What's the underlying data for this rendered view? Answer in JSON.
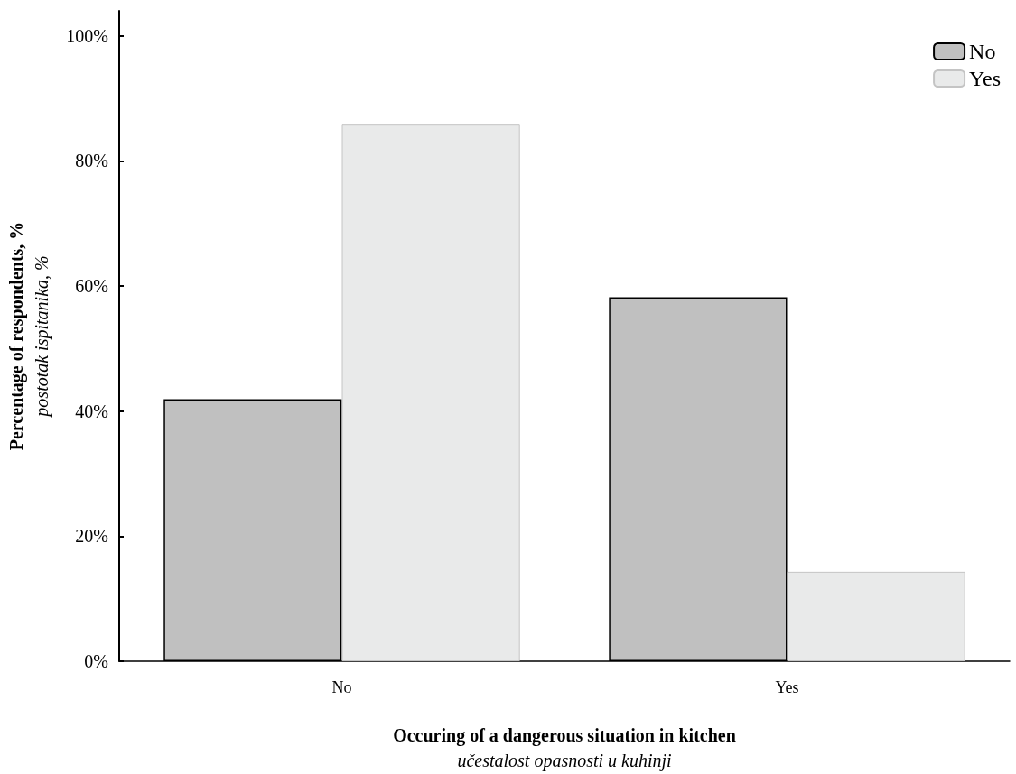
{
  "chart_data": {
    "type": "bar",
    "xlabel": "Occuring of a dangerous situation in kitchen\nučestalost opasnosti u kuhinji",
    "ylabel": "Percentage of respondents, %\npostotak ispitanika, %",
    "categories": [
      "No",
      "Yes"
    ],
    "series": [
      {
        "name": "No",
        "color": "#c0c0c0",
        "values": [
          41.9,
          58.2
        ]
      },
      {
        "name": "Yes",
        "color": "#e9eaea",
        "values": [
          85.8,
          14.3
        ]
      }
    ],
    "ylim": [
      0,
      104
    ],
    "yticks": [
      {
        "value": 0,
        "label": "0%"
      },
      {
        "value": 20,
        "label": "20%"
      },
      {
        "value": 40,
        "label": "40%"
      },
      {
        "value": 60,
        "label": "60%"
      },
      {
        "value": 80,
        "label": "80%"
      },
      {
        "value": 100,
        "label": "100%"
      }
    ],
    "grid": false,
    "legend": "top right"
  }
}
